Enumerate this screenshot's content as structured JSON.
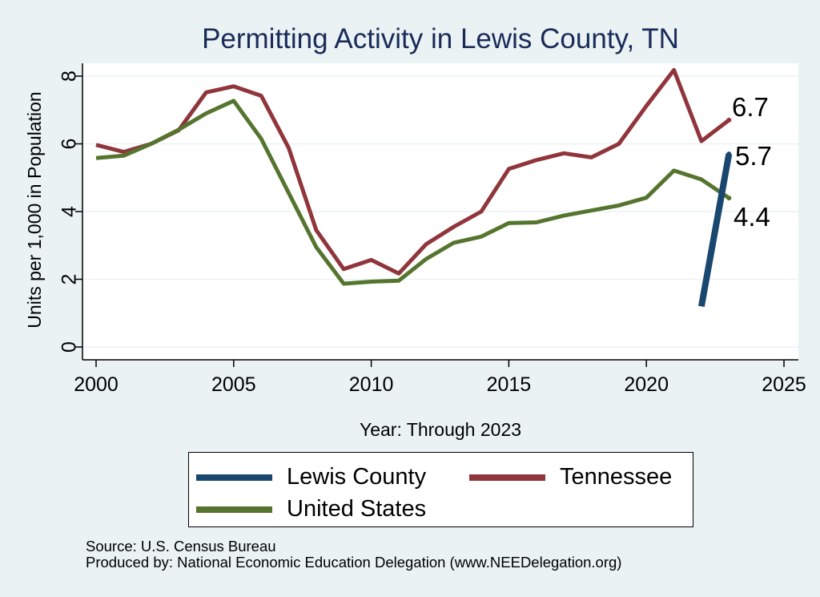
{
  "chart_data": {
    "type": "line",
    "title": "Permitting Activity in Lewis County, TN",
    "xlabel": "Year: Through 2023",
    "ylabel": "Units per 1,000 in Population",
    "xlim": [
      1999.5,
      2025.5
    ],
    "ylim": [
      -0.3,
      8.3
    ],
    "x_ticks": [
      2000,
      2005,
      2010,
      2015,
      2020,
      2025
    ],
    "y_ticks": [
      0,
      2,
      4,
      6,
      8
    ],
    "grid": true,
    "legend_position": "bottom",
    "series": [
      {
        "name": "Lewis County",
        "color": "#1a476f",
        "x": [
          2022,
          2023
        ],
        "y": [
          1.2,
          5.7
        ],
        "end_label": "5.7"
      },
      {
        "name": "Tennessee",
        "color": "#90353b",
        "x": [
          2000,
          2001,
          2002,
          2003,
          2004,
          2005,
          2006,
          2007,
          2008,
          2009,
          2010,
          2011,
          2012,
          2013,
          2014,
          2015,
          2016,
          2017,
          2018,
          2019,
          2020,
          2021,
          2022,
          2023
        ],
        "y": [
          5.97,
          5.76,
          6.0,
          6.4,
          7.52,
          7.7,
          7.42,
          5.88,
          3.45,
          2.3,
          2.57,
          2.17,
          3.04,
          3.55,
          4.0,
          5.26,
          5.52,
          5.72,
          5.6,
          6.0,
          7.12,
          8.18,
          6.08,
          6.7
        ],
        "end_label": "6.7"
      },
      {
        "name": "United States",
        "color": "#55752f",
        "x": [
          2000,
          2001,
          2002,
          2003,
          2004,
          2005,
          2006,
          2007,
          2008,
          2009,
          2010,
          2011,
          2012,
          2013,
          2014,
          2015,
          2016,
          2017,
          2018,
          2019,
          2020,
          2021,
          2022,
          2023
        ],
        "y": [
          5.58,
          5.65,
          6.0,
          6.42,
          6.9,
          7.27,
          6.15,
          4.55,
          2.95,
          1.87,
          1.93,
          1.96,
          2.6,
          3.08,
          3.26,
          3.66,
          3.68,
          3.88,
          4.03,
          4.18,
          4.41,
          5.21,
          4.95,
          4.4
        ],
        "end_label": "4.4"
      }
    ]
  },
  "legend": {
    "items": [
      {
        "label": "Lewis County",
        "color": "#1a476f"
      },
      {
        "label": "Tennessee",
        "color": "#90353b"
      },
      {
        "label": "United States",
        "color": "#55752f"
      }
    ]
  },
  "footer": {
    "source": "Source: U.S. Census Bureau",
    "produced_by": "Produced by: National Economic Education Delegation (www.NEEDelegation.org)"
  },
  "colors": {
    "background": "#eaf2f3",
    "plot_background": "#ffffff",
    "title": "#1a2b5a",
    "grid": "#eaf2f3"
  }
}
